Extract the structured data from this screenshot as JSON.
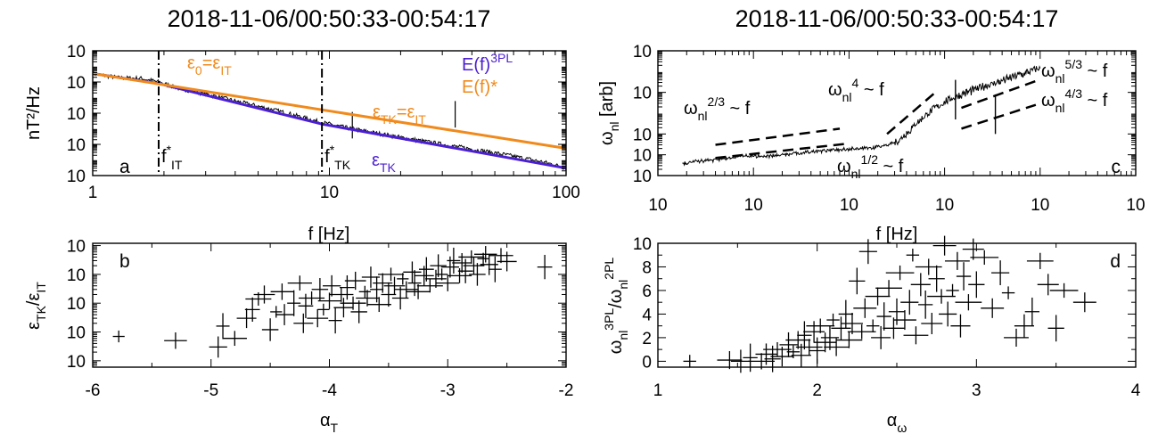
{
  "colors": {
    "orange": "#f08a1c",
    "blue": "#4b1fd2",
    "black": "#000000"
  },
  "chart_data": [
    {
      "panel": "a",
      "type": "line",
      "title": "2018-11-06/00:50:33-00:54:17",
      "xlabel": "f [Hz]",
      "ylabel": "nT²/Hz",
      "xscale": "log",
      "yscale": "log",
      "xlim": [
        1,
        100
      ],
      "ylim": [
        1e-06,
        100
      ],
      "xticks": [
        "1",
        "10",
        "100"
      ],
      "yticks": [
        {
          "b": "10",
          "e": "2"
        },
        {
          "b": "10",
          "e": "0"
        },
        {
          "b": "10",
          "e": "-2"
        },
        {
          "b": "10",
          "e": "-4"
        },
        {
          "b": "10",
          "e": "-6"
        }
      ],
      "series": [
        {
          "name": "E(f)*",
          "color": "orange",
          "x": [
            1,
            100
          ],
          "y": [
            3.5,
            5.5e-05
          ]
        },
        {
          "name": "E(f)3PL",
          "color": "blue",
          "x": [
            1,
            1.9,
            9.3,
            100
          ],
          "y": [
            3.5,
            0.8,
            0.002,
            3e-06
          ]
        },
        {
          "name": "data",
          "color": "black",
          "x": [
            1,
            1.3,
            1.6,
            1.9,
            2.3,
            3,
            4,
            5.5,
            7,
            9.3,
            12,
            16,
            22,
            30,
            40,
            55,
            70,
            85,
            100
          ],
          "y": [
            3.4,
            1.8,
            1.7,
            1.0,
            0.4,
            0.17,
            0.06,
            0.02,
            0.008,
            0.0025,
            0.0011,
            0.0005,
            0.00022,
            0.0001,
            5e-05,
            2.2e-05,
            1.1e-05,
            6e-06,
            3e-06
          ]
        }
      ],
      "spikes": [
        {
          "x": 12.5,
          "peak": 0.012
        },
        {
          "x": 34,
          "peak": 0.06
        }
      ],
      "vlines": [
        {
          "x": 1.9,
          "label": {
            "b": "f",
            "sup": "*",
            "sub": "IT"
          }
        },
        {
          "x": 9.3,
          "label": {
            "b": "f",
            "sup": "*",
            "sub": "TK"
          }
        }
      ],
      "annotations": {
        "e0": {
          "b": "ε",
          "sub": "0",
          "rest": "=ε",
          "sub2": "IT"
        },
        "etk_it": {
          "b": "ε",
          "sub": "TK",
          "rest": "=ε",
          "sub2": "IT"
        },
        "etk": {
          "b": "ε",
          "sub": "TK"
        },
        "legend_blue": {
          "b": "E(f)",
          "sup": "3PL"
        },
        "legend_orange": "E(f)*"
      },
      "panel_label": "a"
    },
    {
      "panel": "c",
      "type": "line",
      "title": "2018-11-06/00:50:33-00:54:17",
      "xlabel": "f [Hz]",
      "ylabel": {
        "b": "ω",
        "sub": "nl",
        "rest": " [arb]"
      },
      "xscale": "log",
      "yscale": "log",
      "xlim": [
        0.01,
        1000
      ],
      "ylim": [
        0.01,
        10000
      ],
      "xticks": [
        {
          "b": "10",
          "e": "-2"
        },
        {
          "b": "10",
          "e": "-1"
        },
        {
          "b": "10",
          "e": "0"
        },
        {
          "b": "10",
          "e": "1"
        },
        {
          "b": "10",
          "e": "2"
        },
        {
          "b": "10",
          "e": "3"
        }
      ],
      "yticks": [
        {
          "b": "10",
          "e": "4"
        },
        {
          "b": "10",
          "e": "2"
        },
        {
          "b": "10",
          "e": "0"
        },
        {
          "b": "10",
          "e": "-1"
        },
        {
          "b": "10",
          "e": "-2"
        }
      ],
      "series": [
        {
          "name": "data",
          "x": [
            0.018,
            0.03,
            0.05,
            0.08,
            0.12,
            0.2,
            0.3,
            0.5,
            0.8,
            1.2,
            1.8,
            2.5,
            3.5,
            5,
            7,
            10,
            15,
            22,
            35,
            55,
            80,
            100
          ],
          "y": [
            0.04,
            0.05,
            0.065,
            0.09,
            0.08,
            0.1,
            0.12,
            0.15,
            0.18,
            0.2,
            0.22,
            0.28,
            0.6,
            3,
            12,
            35,
            80,
            150,
            300,
            600,
            1000,
            1500
          ]
        }
      ],
      "spikes": [
        {
          "x": 13,
          "low": 5
        },
        {
          "x": 34,
          "low": 1
        }
      ],
      "guides": [
        {
          "slope": "2/3",
          "x": [
            0.04,
            0.8
          ],
          "y": [
            0.3,
            1.8
          ]
        },
        {
          "slope": "1/2",
          "x": [
            0.04,
            0.9
          ],
          "y": [
            0.07,
            0.33
          ]
        },
        {
          "slope": "4",
          "x": [
            2.5,
            8
          ],
          "y": [
            1,
            100
          ]
        },
        {
          "slope": "5/3",
          "x": [
            15,
            90
          ],
          "y": [
            18,
            350
          ]
        },
        {
          "slope": "4/3",
          "x": [
            15,
            90
          ],
          "y": [
            1.8,
            25
          ]
        }
      ],
      "annotations": [
        {
          "b": "ω",
          "sub": "nl",
          "rest": " ~ f",
          "sup": "2/3"
        },
        {
          "b": "ω",
          "sub": "nl",
          "rest": " ~ f",
          "sup": "4"
        },
        {
          "b": "ω",
          "sub": "nl",
          "rest": " ~ f",
          "sup": "1/2"
        },
        {
          "b": "ω",
          "sub": "nl",
          "rest": " ~ f",
          "sup": "5/3"
        },
        {
          "b": "ω",
          "sub": "nl",
          "rest": " ~ f",
          "sup": "4/3"
        }
      ],
      "panel_label": "c"
    },
    {
      "panel": "b",
      "type": "scatter",
      "xlabel": {
        "b": "α",
        "sub": "T"
      },
      "ylabel": {
        "b": "ε",
        "sub": "TK",
        "rest": "/ε",
        "sub2": "IT"
      },
      "xscale": "linear",
      "yscale": "log",
      "xlim": [
        -6,
        -2
      ],
      "ylim": [
        0.0006,
        12
      ],
      "xticks": [
        "-6",
        "-5",
        "-4",
        "-3",
        "-2"
      ],
      "yticks": [
        {
          "b": "10",
          "e": "1"
        },
        {
          "b": "10",
          "e": "0"
        },
        {
          "b": "10",
          "e": "-1"
        },
        {
          "b": "10",
          "e": "-2"
        },
        {
          "b": "10",
          "e": "-3"
        }
      ],
      "points": [
        [
          -5.78,
          0.007
        ],
        [
          -5.3,
          0.005
        ],
        [
          -4.94,
          0.003
        ],
        [
          -4.9,
          0.016
        ],
        [
          -4.8,
          0.006
        ],
        [
          -4.7,
          0.03
        ],
        [
          -4.65,
          0.06
        ],
        [
          -4.6,
          0.14
        ],
        [
          -4.55,
          0.2
        ],
        [
          -4.5,
          0.012
        ],
        [
          -4.45,
          0.05
        ],
        [
          -4.4,
          0.25
        ],
        [
          -4.38,
          0.04
        ],
        [
          -4.3,
          0.1
        ],
        [
          -4.25,
          0.5
        ],
        [
          -4.22,
          0.02
        ],
        [
          -4.2,
          0.08
        ],
        [
          -4.15,
          0.15
        ],
        [
          -4.1,
          0.03
        ],
        [
          -4.08,
          0.3
        ],
        [
          -4.05,
          0.06
        ],
        [
          -4.0,
          0.12
        ],
        [
          -3.98,
          0.4
        ],
        [
          -3.95,
          0.025
        ],
        [
          -3.9,
          0.2
        ],
        [
          -3.88,
          0.07
        ],
        [
          -3.85,
          0.35
        ],
        [
          -3.8,
          0.1
        ],
        [
          -3.78,
          0.6
        ],
        [
          -3.75,
          0.05
        ],
        [
          -3.7,
          0.25
        ],
        [
          -3.68,
          0.15
        ],
        [
          -3.65,
          0.8
        ],
        [
          -3.6,
          0.3
        ],
        [
          -3.58,
          0.09
        ],
        [
          -3.55,
          0.5
        ],
        [
          -3.5,
          0.2
        ],
        [
          -3.48,
          1.0
        ],
        [
          -3.45,
          0.4
        ],
        [
          -3.4,
          0.15
        ],
        [
          -3.38,
          0.7
        ],
        [
          -3.35,
          0.3
        ],
        [
          -3.3,
          1.2
        ],
        [
          -3.28,
          0.5
        ],
        [
          -3.25,
          0.25
        ],
        [
          -3.2,
          0.9
        ],
        [
          -3.18,
          1.5
        ],
        [
          -3.15,
          0.4
        ],
        [
          -3.1,
          0.7
        ],
        [
          -3.08,
          2.0
        ],
        [
          -3.05,
          1.0
        ],
        [
          -3.0,
          0.5
        ],
        [
          -2.98,
          1.8
        ],
        [
          -2.95,
          3.0
        ],
        [
          -2.9,
          0.9
        ],
        [
          -2.88,
          2.5
        ],
        [
          -2.85,
          1.3
        ],
        [
          -2.8,
          4.0
        ],
        [
          -2.78,
          2.0
        ],
        [
          -2.75,
          1.0
        ],
        [
          -2.7,
          3.5
        ],
        [
          -2.68,
          5.0
        ],
        [
          -2.65,
          2.2
        ],
        [
          -2.6,
          1.5
        ],
        [
          -2.55,
          4.5
        ],
        [
          -2.5,
          2.8
        ],
        [
          -2.18,
          1.8
        ]
      ],
      "panel_label": "b"
    },
    {
      "panel": "d",
      "type": "scatter",
      "xlabel": {
        "b": "α",
        "sub": "ω"
      },
      "ylabel": {
        "b": "ω",
        "sub": "nl",
        "sup": "3PL",
        "rest": "/ω",
        "sub2": "nl",
        "sup2": "2PL"
      },
      "xscale": "linear",
      "yscale": "linear",
      "xlim": [
        1,
        4
      ],
      "ylim": [
        -0.5,
        10
      ],
      "xticks": [
        "1",
        "2",
        "3",
        "4"
      ],
      "yticks": [
        "0",
        "2",
        "4",
        "6",
        "8",
        "10"
      ],
      "points": [
        [
          1.2,
          0.0
        ],
        [
          1.45,
          0.1
        ],
        [
          1.52,
          0.0
        ],
        [
          1.58,
          0.3
        ],
        [
          1.65,
          0.0
        ],
        [
          1.68,
          0.6
        ],
        [
          1.72,
          0.2
        ],
        [
          1.75,
          1.0
        ],
        [
          1.78,
          0.4
        ],
        [
          1.82,
          1.4
        ],
        [
          1.85,
          0.8
        ],
        [
          1.88,
          1.8
        ],
        [
          1.9,
          0.5
        ],
        [
          1.92,
          2.2
        ],
        [
          1.95,
          1.2
        ],
        [
          1.98,
          2.5
        ],
        [
          2.0,
          0.9
        ],
        [
          2.02,
          3.0
        ],
        [
          2.05,
          1.6
        ],
        [
          2.08,
          2.0
        ],
        [
          2.1,
          3.5
        ],
        [
          2.12,
          1.2
        ],
        [
          2.15,
          2.8
        ],
        [
          2.18,
          4.0
        ],
        [
          2.2,
          1.8
        ],
        [
          2.22,
          3.2
        ],
        [
          2.25,
          6.8
        ],
        [
          2.28,
          2.5
        ],
        [
          2.3,
          4.5
        ],
        [
          2.32,
          9.3
        ],
        [
          2.35,
          3.0
        ],
        [
          2.38,
          5.5
        ],
        [
          2.4,
          2.0
        ],
        [
          2.42,
          3.8
        ],
        [
          2.45,
          6.2
        ],
        [
          2.48,
          2.8
        ],
        [
          2.5,
          4.2
        ],
        [
          2.52,
          7.5
        ],
        [
          2.55,
          3.5
        ],
        [
          2.58,
          5.0
        ],
        [
          2.6,
          9.0
        ],
        [
          2.62,
          2.2
        ],
        [
          2.65,
          6.5
        ],
        [
          2.68,
          4.8
        ],
        [
          2.7,
          8.0
        ],
        [
          2.72,
          3.2
        ],
        [
          2.75,
          7.0
        ],
        [
          2.78,
          5.5
        ],
        [
          2.8,
          9.8
        ],
        [
          2.82,
          4.0
        ],
        [
          2.85,
          6.0
        ],
        [
          2.88,
          8.5
        ],
        [
          2.9,
          3.0
        ],
        [
          2.92,
          7.2
        ],
        [
          2.95,
          5.0
        ],
        [
          2.98,
          9.5
        ],
        [
          3.0,
          6.5
        ],
        [
          3.05,
          8.8
        ],
        [
          3.1,
          4.5
        ],
        [
          3.15,
          7.5
        ],
        [
          3.2,
          5.8
        ],
        [
          3.25,
          2.0
        ],
        [
          3.3,
          3.0
        ],
        [
          3.35,
          4.2
        ],
        [
          3.4,
          8.5
        ],
        [
          3.45,
          6.5
        ],
        [
          3.5,
          2.8
        ],
        [
          3.55,
          6.0
        ],
        [
          3.68,
          5.0
        ]
      ],
      "panel_label": "d"
    }
  ]
}
